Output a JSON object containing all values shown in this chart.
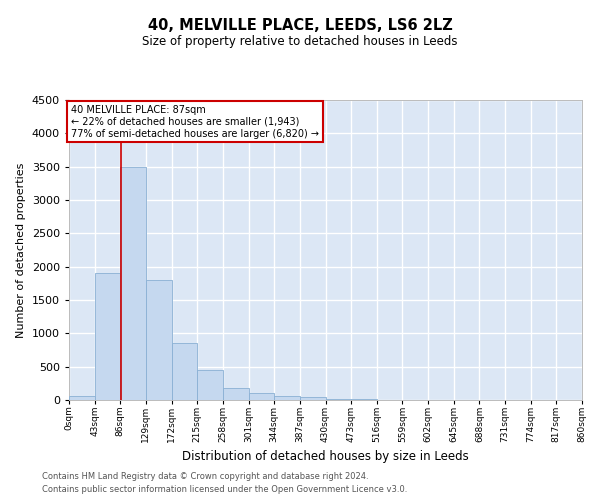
{
  "title": "40, MELVILLE PLACE, LEEDS, LS6 2LZ",
  "subtitle": "Size of property relative to detached houses in Leeds",
  "xlabel": "Distribution of detached houses by size in Leeds",
  "ylabel": "Number of detached properties",
  "bar_color": "#c5d8ef",
  "bar_edge_color": "#8ab0d4",
  "bg_color": "#dce7f5",
  "grid_color": "#ffffff",
  "annotation_text": "40 MELVILLE PLACE: 87sqm\n← 22% of detached houses are smaller (1,943)\n77% of semi-detached houses are larger (6,820) →",
  "vline_x": 87,
  "vline_color": "#cc0000",
  "ylim": [
    0,
    4500
  ],
  "yticks": [
    0,
    500,
    1000,
    1500,
    2000,
    2500,
    3000,
    3500,
    4000,
    4500
  ],
  "bin_edges": [
    0,
    43,
    86,
    129,
    172,
    215,
    258,
    301,
    344,
    387,
    430,
    473,
    516,
    559,
    602,
    645,
    688,
    731,
    774,
    817,
    860
  ],
  "bar_heights": [
    55,
    1900,
    3500,
    1800,
    850,
    450,
    175,
    100,
    58,
    38,
    18,
    8,
    3,
    2,
    1,
    0,
    0,
    0,
    0,
    0
  ],
  "footer_line1": "Contains HM Land Registry data © Crown copyright and database right 2024.",
  "footer_line2": "Contains public sector information licensed under the Open Government Licence v3.0."
}
